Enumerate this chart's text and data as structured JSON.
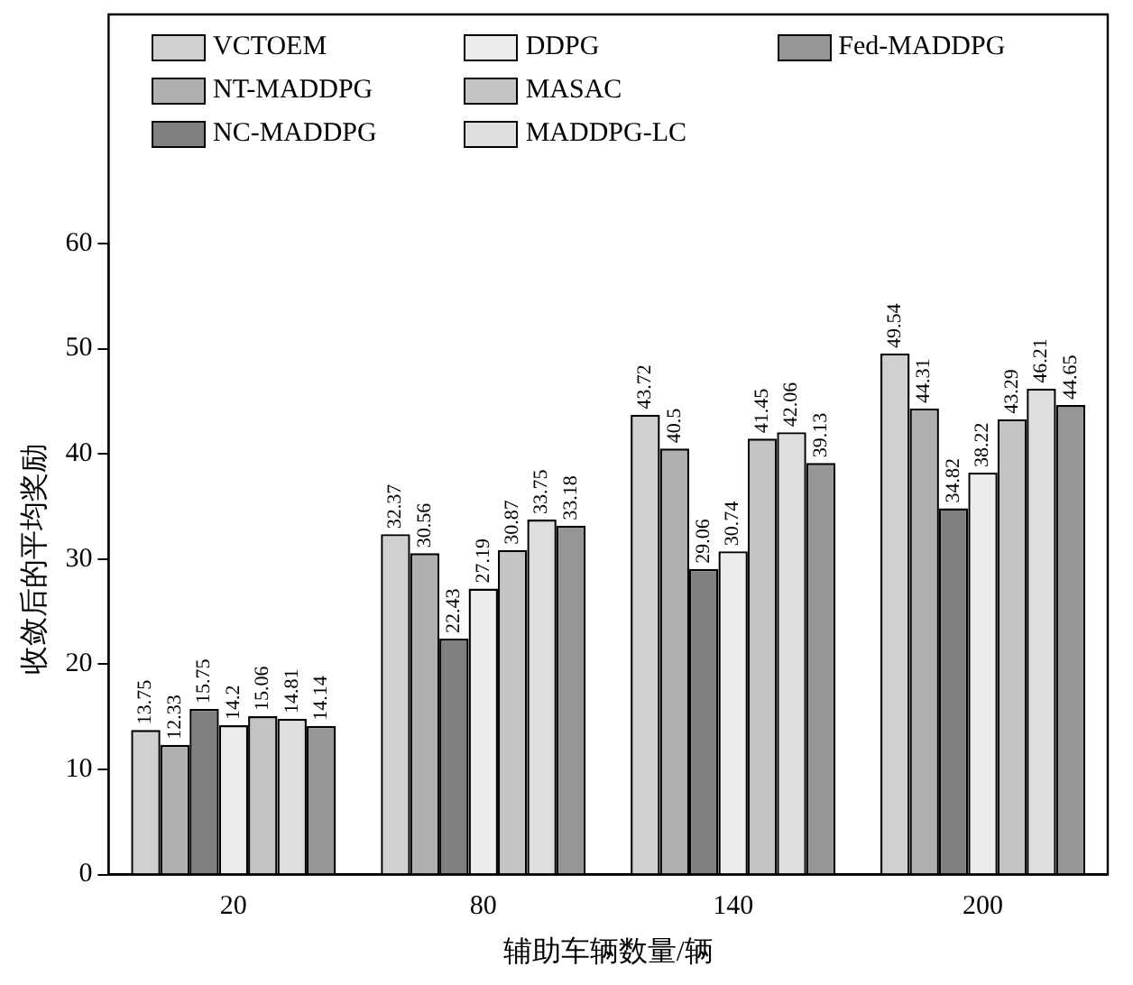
{
  "chart_data": {
    "type": "bar",
    "xlabel": "辅助车辆数量/辆",
    "ylabel": "收敛后的平均奖励",
    "categories": [
      "20",
      "80",
      "140",
      "200"
    ],
    "series": [
      {
        "name": "VCTOEM",
        "color": "#d0d0d0",
        "values": [
          13.75,
          32.37,
          43.72,
          49.54
        ]
      },
      {
        "name": "NT-MADDPG",
        "color": "#b0b0b0",
        "values": [
          12.33,
          30.56,
          40.5,
          44.31
        ]
      },
      {
        "name": "NC-MADDPG",
        "color": "#808080",
        "values": [
          15.75,
          22.43,
          29.06,
          34.82
        ]
      },
      {
        "name": "DDPG",
        "color": "#ececec",
        "values": [
          14.2,
          27.19,
          30.74,
          38.22
        ]
      },
      {
        "name": "MASAC",
        "color": "#c4c4c4",
        "values": [
          15.06,
          30.87,
          41.45,
          43.29
        ]
      },
      {
        "name": "MADDPG-LC",
        "color": "#dedede",
        "values": [
          14.81,
          33.75,
          42.06,
          46.21
        ]
      },
      {
        "name": "Fed-MADDPG",
        "color": "#969696",
        "values": [
          14.14,
          33.18,
          39.13,
          44.65
        ]
      }
    ],
    "ylim": [
      0,
      60
    ],
    "yticks": [
      0,
      10,
      20,
      30,
      40,
      50,
      60
    ],
    "grid": false,
    "legend": "top",
    "data_labels": true
  }
}
